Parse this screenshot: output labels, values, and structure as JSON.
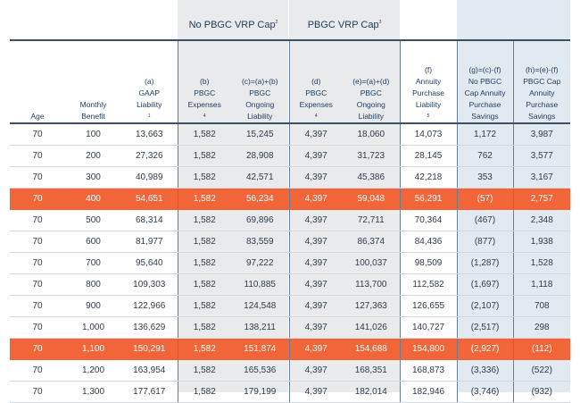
{
  "group_headers": {
    "no_cap": "No PBGC VRP Cap",
    "no_cap_note": "2",
    "cap": "PBGC VRP Cap",
    "cap_note": "3"
  },
  "columns": [
    {
      "key": "age",
      "label": "Age",
      "note": ""
    },
    {
      "key": "monthly_benefit",
      "label": "Monthly Benefit",
      "note": ""
    },
    {
      "key": "a",
      "label": "(a) GAAP Liability",
      "note": "1"
    },
    {
      "key": "b",
      "label": "(b) PBGC Expenses",
      "note": "4"
    },
    {
      "key": "c",
      "label": "(c)=(a)+(b) PBGC Ongoing Liability",
      "note": ""
    },
    {
      "key": "d",
      "label": "(d) PBGC Expenses",
      "note": "4"
    },
    {
      "key": "e",
      "label": "(e)=(a)+(d) PBGC Ongoing Liability",
      "note": ""
    },
    {
      "key": "f",
      "label": "(f) Annuity Purchase Liability",
      "note": "5"
    },
    {
      "key": "g",
      "label": "(g)=(c)-(f) No PBGC Cap Annuity Purchase Savings",
      "note": ""
    },
    {
      "key": "h",
      "label": "(h)=(e)-(f) PBGC Cap Annuity Purchase Savings",
      "note": ""
    }
  ],
  "rows": [
    {
      "age": "70",
      "monthly_benefit": "100",
      "a": "13,663",
      "b": "1,582",
      "c": "15,245",
      "d": "4,397",
      "e": "18,060",
      "f": "14,073",
      "g": "1,172",
      "h": "3,987",
      "highlight": false
    },
    {
      "age": "70",
      "monthly_benefit": "200",
      "a": "27,326",
      "b": "1,582",
      "c": "28,908",
      "d": "4,397",
      "e": "31,723",
      "f": "28,145",
      "g": "762",
      "h": "3,577",
      "highlight": false
    },
    {
      "age": "70",
      "monthly_benefit": "300",
      "a": "40,989",
      "b": "1,582",
      "c": "42,571",
      "d": "4,397",
      "e": "45,386",
      "f": "42,218",
      "g": "353",
      "h": "3,167",
      "highlight": false
    },
    {
      "age": "70",
      "monthly_benefit": "400",
      "a": "54,651",
      "b": "1,582",
      "c": "56,234",
      "d": "4,397",
      "e": "59,048",
      "f": "56,291",
      "g": "(57)",
      "h": "2,757",
      "highlight": true
    },
    {
      "age": "70",
      "monthly_benefit": "500",
      "a": "68,314",
      "b": "1,582",
      "c": "69,896",
      "d": "4,397",
      "e": "72,711",
      "f": "70,364",
      "g": "(467)",
      "h": "2,348",
      "highlight": false
    },
    {
      "age": "70",
      "monthly_benefit": "600",
      "a": "81,977",
      "b": "1,582",
      "c": "83,559",
      "d": "4,397",
      "e": "86,374",
      "f": "84,436",
      "g": "(877)",
      "h": "1,938",
      "highlight": false
    },
    {
      "age": "70",
      "monthly_benefit": "700",
      "a": "95,640",
      "b": "1,582",
      "c": "97,222",
      "d": "4,397",
      "e": "100,037",
      "f": "98,509",
      "g": "(1,287)",
      "h": "1,528",
      "highlight": false
    },
    {
      "age": "70",
      "monthly_benefit": "800",
      "a": "109,303",
      "b": "1,582",
      "c": "110,885",
      "d": "4,397",
      "e": "113,700",
      "f": "112,582",
      "g": "(1,697)",
      "h": "1,118",
      "highlight": false
    },
    {
      "age": "70",
      "monthly_benefit": "900",
      "a": "122,966",
      "b": "1,582",
      "c": "124,548",
      "d": "4,397",
      "e": "127,363",
      "f": "126,655",
      "g": "(2,107)",
      "h": "708",
      "highlight": false
    },
    {
      "age": "70",
      "monthly_benefit": "1,000",
      "a": "136,629",
      "b": "1,582",
      "c": "138,211",
      "d": "4,397",
      "e": "141,026",
      "f": "140,727",
      "g": "(2,517)",
      "h": "298",
      "highlight": false
    },
    {
      "age": "70",
      "monthly_benefit": "1,100",
      "a": "150,291",
      "b": "1,582",
      "c": "151,874",
      "d": "4,397",
      "e": "154,688",
      "f": "154,800",
      "g": "(2,927)",
      "h": "(112)",
      "highlight": true
    },
    {
      "age": "70",
      "monthly_benefit": "1,200",
      "a": "163,954",
      "b": "1,582",
      "c": "165,536",
      "d": "4,397",
      "e": "168,351",
      "f": "168,873",
      "g": "(3,336)",
      "h": "(522)",
      "highlight": false
    },
    {
      "age": "70",
      "monthly_benefit": "1,300",
      "a": "177,617",
      "b": "1,582",
      "c": "179,199",
      "d": "4,397",
      "e": "182,014",
      "f": "182,946",
      "g": "(3,746)",
      "h": "(932)",
      "highlight": false
    }
  ],
  "colors": {
    "header_text": "#1e3b5c",
    "highlight_row": "#f26538",
    "shade_gray": "#e8eaec",
    "shade_blue": "#e1e9f1"
  }
}
